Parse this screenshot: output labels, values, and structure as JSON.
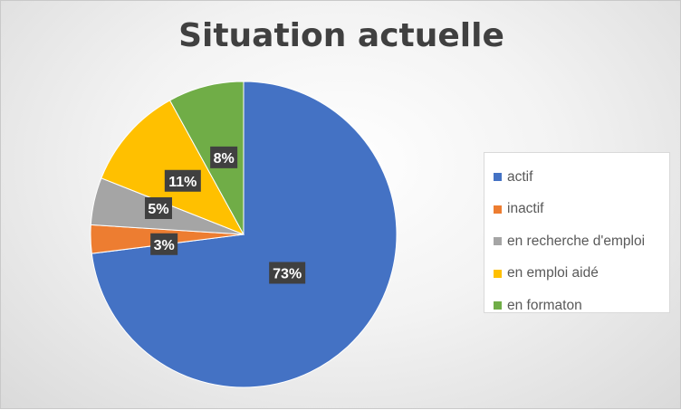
{
  "chart_data": {
    "type": "pie",
    "title": "Situation actuelle",
    "slices": [
      {
        "label": "actif",
        "value": 73,
        "data_label": "73%",
        "color": "#4472C4"
      },
      {
        "label": "inactif",
        "value": 3,
        "data_label": "3%",
        "color": "#ED7D31"
      },
      {
        "label": "en recherche d'emploi",
        "value": 5,
        "data_label": "5%",
        "color": "#A5A5A5"
      },
      {
        "label": "en emploi aidé",
        "value": 11,
        "data_label": "11%",
        "color": "#FFC000"
      },
      {
        "label": "en formaton",
        "value": 8,
        "data_label": "8%",
        "color": "#70AD47"
      }
    ],
    "legend_position": "right"
  }
}
